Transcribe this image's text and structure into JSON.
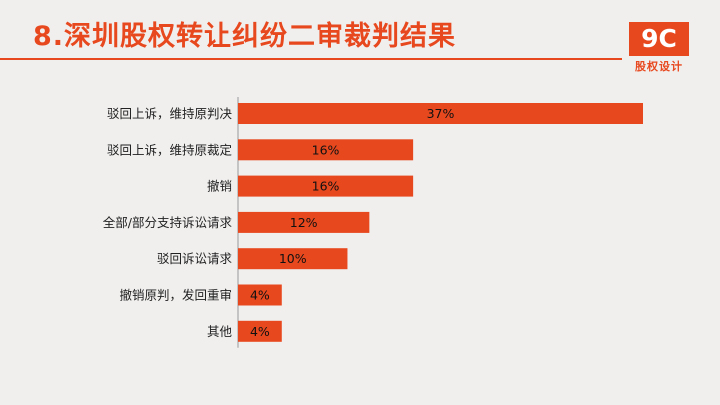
{
  "header": {
    "title": "8.深圳股权转让纠纷二审裁判结果",
    "logo_mark": "9C",
    "logo_text": "股权设计"
  },
  "colors": {
    "accent": "#e8481e",
    "background": "#f0efee",
    "axis": "#9a9a9a"
  },
  "chart_data": {
    "type": "bar",
    "orientation": "horizontal",
    "categories": [
      "驳回上诉，维持原判决",
      "驳回上诉，维持原裁定",
      "撤销",
      "全部/部分支持诉讼请求",
      "驳回诉讼请求",
      "撤销原判，发回重审",
      "其他"
    ],
    "values": [
      37,
      16,
      16,
      12,
      10,
      4,
      4
    ],
    "value_labels": [
      "37%",
      "16%",
      "16%",
      "12%",
      "10%",
      "4%",
      "4%"
    ],
    "title": "8.深圳股权转让纠纷二审裁判结果",
    "xlabel": "",
    "ylabel": "",
    "xlim": [
      0,
      37
    ],
    "grid": false,
    "legend": "none"
  }
}
